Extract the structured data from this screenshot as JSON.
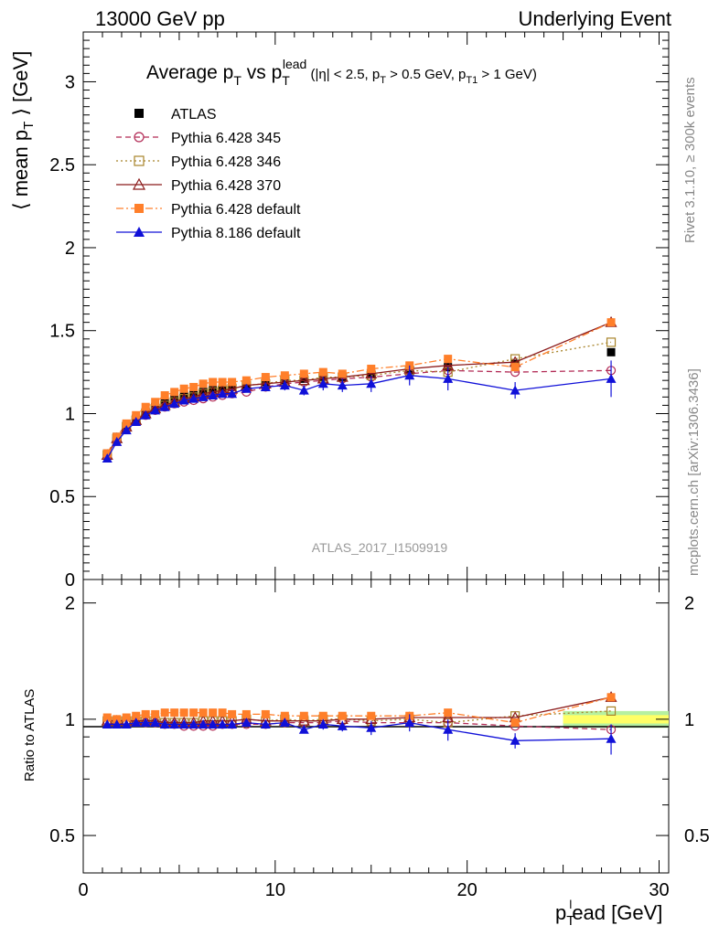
{
  "header": {
    "left": "13000 GeV pp",
    "right": "Underlying Event"
  },
  "side_labels": {
    "rivet": "Rivet 3.1.10, ≥ 300k events",
    "mcplots": "mcplots.cern.ch [arXiv:1306.3436]"
  },
  "watermark": "ATLAS_2017_I1509919",
  "colors": {
    "ATLAS": "#000000",
    "p345": "#b22a55",
    "p346": "#a8842a",
    "p370": "#8b1a1a",
    "pdef": "#ff7f2a",
    "p8": "#1010d8",
    "band_inner": "#ffff66",
    "band_outer": "#b6f0a0"
  },
  "chart_data": [
    {
      "type": "line",
      "title": "Average p_T vs p_T^lead (|η| < 2.5, p_T > 0.5 GeV, p_T1 > 1 GeV)",
      "ylabel": "⟨ mean p_T ⟩ [GeV]",
      "xlim": [
        0,
        30.5
      ],
      "ylim": [
        0,
        3.3
      ],
      "yticks": [
        "0",
        "0.5",
        "1",
        "1.5",
        "2",
        "2.5",
        "3"
      ],
      "x": [
        1.25,
        1.75,
        2.25,
        2.75,
        3.25,
        3.75,
        4.25,
        4.75,
        5.25,
        5.75,
        6.25,
        6.75,
        7.25,
        7.75,
        8.5,
        9.5,
        10.5,
        11.5,
        12.5,
        13.5,
        15,
        17,
        19,
        22.5,
        27.5
      ],
      "legend": [
        "ATLAS",
        "Pythia 6.428 345",
        "Pythia 6.428 346",
        "Pythia 6.428 370",
        "Pythia 6.428 default",
        "Pythia 8.186 default"
      ],
      "series": [
        {
          "name": "ATLAS",
          "key": "ATLAS",
          "marker": "square-filled",
          "style": "none",
          "values": [
            0.76,
            0.86,
            0.93,
            0.97,
            1.01,
            1.04,
            1.07,
            1.09,
            1.11,
            1.12,
            1.13,
            1.14,
            1.15,
            1.16,
            1.17,
            1.19,
            1.2,
            1.21,
            1.22,
            1.22,
            1.24,
            1.26,
            1.28,
            1.3,
            1.37
          ]
        },
        {
          "name": "Pythia 6.428 345",
          "key": "p345",
          "marker": "circle-open",
          "style": "dashed",
          "values": [
            0.75,
            0.85,
            0.92,
            0.96,
            0.99,
            1.02,
            1.04,
            1.06,
            1.07,
            1.08,
            1.09,
            1.1,
            1.11,
            1.12,
            1.13,
            1.16,
            1.18,
            1.19,
            1.2,
            1.21,
            1.22,
            1.24,
            1.26,
            1.25,
            1.26
          ]
        },
        {
          "name": "Pythia 6.428 346",
          "key": "p346",
          "marker": "square-open",
          "style": "dotted",
          "values": [
            0.75,
            0.85,
            0.92,
            0.96,
            1.0,
            1.03,
            1.05,
            1.07,
            1.09,
            1.1,
            1.12,
            1.13,
            1.14,
            1.15,
            1.17,
            1.18,
            1.2,
            1.2,
            1.22,
            1.22,
            1.23,
            1.26,
            1.25,
            1.33,
            1.43
          ]
        },
        {
          "name": "Pythia 6.428 370",
          "key": "p370",
          "marker": "triangle-open",
          "style": "solid",
          "values": [
            0.75,
            0.85,
            0.92,
            0.96,
            1.0,
            1.03,
            1.05,
            1.07,
            1.09,
            1.1,
            1.12,
            1.13,
            1.14,
            1.15,
            1.17,
            1.18,
            1.19,
            1.2,
            1.21,
            1.22,
            1.24,
            1.27,
            1.29,
            1.31,
            1.55
          ]
        },
        {
          "name": "Pythia 6.428 default",
          "key": "pdef",
          "marker": "square-filled",
          "style": "dashdot",
          "values": [
            0.76,
            0.86,
            0.94,
            0.99,
            1.04,
            1.07,
            1.11,
            1.13,
            1.15,
            1.16,
            1.18,
            1.19,
            1.19,
            1.19,
            1.2,
            1.22,
            1.23,
            1.24,
            1.25,
            1.24,
            1.27,
            1.29,
            1.33,
            1.28,
            1.55
          ]
        },
        {
          "name": "Pythia 8.186 default",
          "key": "p8",
          "marker": "triangle-filled",
          "style": "solid",
          "values": [
            0.73,
            0.83,
            0.9,
            0.95,
            0.99,
            1.02,
            1.04,
            1.06,
            1.08,
            1.09,
            1.1,
            1.11,
            1.12,
            1.12,
            1.15,
            1.16,
            1.17,
            1.14,
            1.18,
            1.17,
            1.18,
            1.23,
            1.21,
            1.14,
            1.21
          ],
          "errors": [
            0.02,
            0.02,
            0.02,
            0.02,
            0.02,
            0.02,
            0.02,
            0.02,
            0.02,
            0.02,
            0.02,
            0.02,
            0.02,
            0.02,
            0.02,
            0.02,
            0.03,
            0.03,
            0.04,
            0.04,
            0.05,
            0.06,
            0.07,
            0.05,
            0.11
          ]
        }
      ]
    },
    {
      "type": "line",
      "ylabel": "Ratio to ATLAS",
      "xlabel": "p_T^lead [GeV]",
      "xlim": [
        0,
        30.5
      ],
      "ylim": [
        0.4,
        2.3
      ],
      "yticks": [
        "0.5",
        "1",
        "2"
      ],
      "xticks": [
        "0",
        "10",
        "20",
        "30"
      ],
      "x": [
        1.25,
        1.75,
        2.25,
        2.75,
        3.25,
        3.75,
        4.25,
        4.75,
        5.25,
        5.75,
        6.25,
        6.75,
        7.25,
        7.75,
        8.5,
        9.5,
        10.5,
        11.5,
        12.5,
        13.5,
        15,
        17,
        19,
        22.5,
        27.5
      ],
      "series": [
        {
          "key": "p345",
          "marker": "circle-open",
          "style": "dashed",
          "values": [
            0.99,
            0.99,
            0.99,
            0.99,
            0.98,
            0.98,
            0.97,
            0.97,
            0.96,
            0.96,
            0.96,
            0.96,
            0.97,
            0.97,
            0.97,
            0.97,
            0.98,
            0.98,
            0.98,
            0.99,
            0.98,
            0.98,
            0.98,
            0.96,
            0.94
          ]
        },
        {
          "key": "p346",
          "marker": "square-open",
          "style": "dotted",
          "values": [
            0.99,
            0.99,
            0.99,
            0.99,
            0.99,
            0.99,
            0.98,
            0.98,
            0.98,
            0.98,
            0.99,
            0.99,
            0.99,
            0.99,
            1.0,
            0.99,
            1.0,
            0.99,
            1.0,
            1.0,
            0.99,
            1.0,
            0.98,
            1.02,
            1.05
          ]
        },
        {
          "key": "p370",
          "marker": "triangle-open",
          "style": "solid",
          "values": [
            0.99,
            0.99,
            0.99,
            0.99,
            0.99,
            0.99,
            0.98,
            0.98,
            0.98,
            0.98,
            0.99,
            0.99,
            0.99,
            0.99,
            1.0,
            0.99,
            0.99,
            0.99,
            0.99,
            1.0,
            1.0,
            1.01,
            1.01,
            1.01,
            1.14
          ]
        },
        {
          "key": "pdef",
          "marker": "square-filled",
          "style": "dashdot",
          "values": [
            1.01,
            1.0,
            1.01,
            1.02,
            1.03,
            1.03,
            1.04,
            1.04,
            1.04,
            1.04,
            1.04,
            1.04,
            1.04,
            1.03,
            1.03,
            1.03,
            1.02,
            1.02,
            1.02,
            1.02,
            1.02,
            1.02,
            1.04,
            0.98,
            1.14
          ]
        },
        {
          "key": "p8",
          "marker": "triangle-filled",
          "style": "solid",
          "values": [
            0.97,
            0.97,
            0.97,
            0.98,
            0.98,
            0.98,
            0.97,
            0.97,
            0.97,
            0.97,
            0.97,
            0.97,
            0.97,
            0.97,
            0.98,
            0.97,
            0.98,
            0.94,
            0.97,
            0.96,
            0.95,
            0.98,
            0.94,
            0.88,
            0.89
          ],
          "errors": [
            0.02,
            0.02,
            0.02,
            0.02,
            0.02,
            0.02,
            0.02,
            0.02,
            0.02,
            0.02,
            0.02,
            0.02,
            0.02,
            0.02,
            0.02,
            0.02,
            0.02,
            0.02,
            0.03,
            0.03,
            0.04,
            0.05,
            0.06,
            0.04,
            0.08
          ]
        }
      ]
    }
  ]
}
